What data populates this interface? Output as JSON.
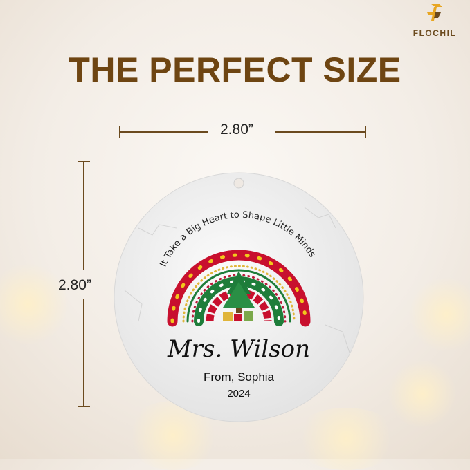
{
  "brand": {
    "name": "FLOCHIL",
    "colors": {
      "gold": "#e8a622",
      "brown": "#6b4a1e"
    }
  },
  "headline": "THE PERFECT SIZE",
  "dimensions": {
    "width": "2.80”",
    "height": "2.80”"
  },
  "ornament": {
    "arc_text": "It Take a Big Heart to Shape Little Minds",
    "name": "Mrs. Wilson",
    "from": "From, Sophia",
    "year": "2024",
    "colors": {
      "red": "#c8102e",
      "green": "#1e7d3a",
      "gold": "#e0b53a"
    }
  }
}
